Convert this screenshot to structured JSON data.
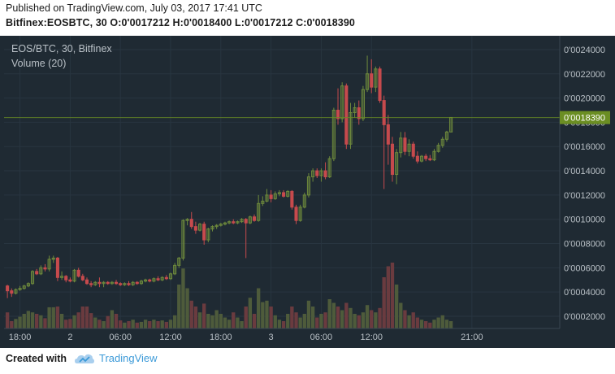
{
  "header": {
    "published": "Published on TradingView.com, July 03, 2017 17:41 UTC",
    "ohlc": "Bitfinex:EOSBTC, 30  O:0'0017212 H:0'0018400 L:0'0017212 C:0'0018390"
  },
  "footer": {
    "created_with": "Created with",
    "brand": "TradingView"
  },
  "colors": {
    "background": "#1f2a33",
    "grid": "#283540",
    "up": "#6e8a3c",
    "down": "#c64a4d",
    "vol_up": "#4e5b3b",
    "vol_down": "#6a3b3f",
    "price_tag": "#6b8e23",
    "axis_text": "#b9c0c6"
  },
  "chart_data": {
    "type": "candlestick",
    "title": "EOS/BTC, 30, Bitfinex",
    "volume_label": "Volume (20)",
    "last_price_label": "0'0018390",
    "last_price": 0.001839,
    "ylim": [
      0.0002,
      0.00246
    ],
    "x_range_bars": [
      -0.8,
      132
    ],
    "grid": true,
    "y_ticks": [
      {
        "v": 0.0024,
        "label": "0'0024000"
      },
      {
        "v": 0.0022,
        "label": "0'0022000"
      },
      {
        "v": 0.002,
        "label": "0'0020000"
      },
      {
        "v": 0.0018,
        "label": "0'0018000"
      },
      {
        "v": 0.0016,
        "label": "0'0016000"
      },
      {
        "v": 0.0014,
        "label": "0'0014000"
      },
      {
        "v": 0.0012,
        "label": "0'0012000"
      },
      {
        "v": 0.001,
        "label": "0'0010000"
      },
      {
        "v": 0.0008,
        "label": "0'0008000"
      },
      {
        "v": 0.0006,
        "label": "0'0006000"
      },
      {
        "v": 0.0004,
        "label": "0'0004000"
      },
      {
        "v": 0.0002,
        "label": "0'0002000"
      }
    ],
    "x_ticks": [
      {
        "bar": 3,
        "label": "18:00"
      },
      {
        "bar": 15,
        "label": "2"
      },
      {
        "bar": 27,
        "label": "06:00"
      },
      {
        "bar": 39,
        "label": "12:00"
      },
      {
        "bar": 51,
        "label": "18:00"
      },
      {
        "bar": 63,
        "label": "3"
      },
      {
        "bar": 75,
        "label": "06:00"
      },
      {
        "bar": 87,
        "label": "12:00"
      },
      {
        "bar": 111,
        "label": "21:00"
      }
    ],
    "candles": [
      {
        "o": 0.00045,
        "h": 0.00046,
        "l": 0.00035,
        "c": 0.00041,
        "v": 0.22
      },
      {
        "o": 0.00041,
        "h": 0.00043,
        "l": 0.00036,
        "c": 0.00039,
        "v": 0.1
      },
      {
        "o": 0.00039,
        "h": 0.00043,
        "l": 0.00038,
        "c": 0.00042,
        "v": 0.13
      },
      {
        "o": 0.00042,
        "h": 0.00045,
        "l": 0.00041,
        "c": 0.00043,
        "v": 0.16
      },
      {
        "o": 0.00043,
        "h": 0.00046,
        "l": 0.00042,
        "c": 0.00045,
        "v": 0.2
      },
      {
        "o": 0.00045,
        "h": 0.00048,
        "l": 0.00044,
        "c": 0.00047,
        "v": 0.24
      },
      {
        "o": 0.00047,
        "h": 0.00058,
        "l": 0.00046,
        "c": 0.00057,
        "v": 0.22
      },
      {
        "o": 0.00057,
        "h": 0.00059,
        "l": 0.00054,
        "c": 0.00055,
        "v": 0.2
      },
      {
        "o": 0.00055,
        "h": 0.00062,
        "l": 0.00054,
        "c": 0.0006,
        "v": 0.18
      },
      {
        "o": 0.0006,
        "h": 0.00063,
        "l": 0.00057,
        "c": 0.00059,
        "v": 0.14
      },
      {
        "o": 0.00059,
        "h": 0.0007,
        "l": 0.00057,
        "c": 0.00067,
        "v": 0.29
      },
      {
        "o": 0.00067,
        "h": 0.0007,
        "l": 0.00064,
        "c": 0.00068,
        "v": 0.29
      },
      {
        "o": 0.00068,
        "h": 0.00069,
        "l": 0.00049,
        "c": 0.00052,
        "v": 0.3
      },
      {
        "o": 0.00052,
        "h": 0.00057,
        "l": 0.0005,
        "c": 0.00053,
        "v": 0.2
      },
      {
        "o": 0.00053,
        "h": 0.00054,
        "l": 0.00048,
        "c": 0.0005,
        "v": 0.12
      },
      {
        "o": 0.0005,
        "h": 0.00052,
        "l": 0.00048,
        "c": 0.00049,
        "v": 0.13
      },
      {
        "o": 0.00049,
        "h": 0.00059,
        "l": 0.00048,
        "c": 0.00058,
        "v": 0.18
      },
      {
        "o": 0.00058,
        "h": 0.0006,
        "l": 0.00052,
        "c": 0.00053,
        "v": 0.22
      },
      {
        "o": 0.00053,
        "h": 0.00055,
        "l": 0.00049,
        "c": 0.0005,
        "v": 0.3
      },
      {
        "o": 0.0005,
        "h": 0.00052,
        "l": 0.00046,
        "c": 0.00047,
        "v": 0.3
      },
      {
        "o": 0.00047,
        "h": 0.00049,
        "l": 0.00044,
        "c": 0.00046,
        "v": 0.21
      },
      {
        "o": 0.00046,
        "h": 0.00049,
        "l": 0.00045,
        "c": 0.00048,
        "v": 0.15
      },
      {
        "o": 0.00048,
        "h": 0.00052,
        "l": 0.00044,
        "c": 0.00047,
        "v": 0.12
      },
      {
        "o": 0.00047,
        "h": 0.00049,
        "l": 0.00044,
        "c": 0.00048,
        "v": 0.1
      },
      {
        "o": 0.00048,
        "h": 0.00049,
        "l": 0.00046,
        "c": 0.00047,
        "v": 0.17
      },
      {
        "o": 0.00047,
        "h": 0.00049,
        "l": 0.00046,
        "c": 0.00048,
        "v": 0.25
      },
      {
        "o": 0.00048,
        "h": 0.0005,
        "l": 0.00046,
        "c": 0.00047,
        "v": 0.2
      },
      {
        "o": 0.00047,
        "h": 0.00048,
        "l": 0.00045,
        "c": 0.00046,
        "v": 0.11
      },
      {
        "o": 0.00046,
        "h": 0.00048,
        "l": 0.00045,
        "c": 0.00047,
        "v": 0.08
      },
      {
        "o": 0.00047,
        "h": 0.00049,
        "l": 0.00045,
        "c": 0.00046,
        "v": 0.1
      },
      {
        "o": 0.00046,
        "h": 0.00049,
        "l": 0.00045,
        "c": 0.00048,
        "v": 0.12
      },
      {
        "o": 0.00048,
        "h": 0.00049,
        "l": 0.00046,
        "c": 0.00047,
        "v": 0.08
      },
      {
        "o": 0.00047,
        "h": 0.0005,
        "l": 0.00046,
        "c": 0.00049,
        "v": 0.09
      },
      {
        "o": 0.00049,
        "h": 0.00051,
        "l": 0.00048,
        "c": 0.0005,
        "v": 0.12
      },
      {
        "o": 0.0005,
        "h": 0.00051,
        "l": 0.00048,
        "c": 0.00049,
        "v": 0.1
      },
      {
        "o": 0.00049,
        "h": 0.00052,
        "l": 0.00048,
        "c": 0.00051,
        "v": 0.12
      },
      {
        "o": 0.00051,
        "h": 0.00053,
        "l": 0.00049,
        "c": 0.0005,
        "v": 0.1
      },
      {
        "o": 0.0005,
        "h": 0.00053,
        "l": 0.00049,
        "c": 0.00052,
        "v": 0.11
      },
      {
        "o": 0.00052,
        "h": 0.00054,
        "l": 0.0005,
        "c": 0.00051,
        "v": 0.09
      },
      {
        "o": 0.00051,
        "h": 0.00056,
        "l": 0.0005,
        "c": 0.00055,
        "v": 0.12
      },
      {
        "o": 0.00055,
        "h": 0.00064,
        "l": 0.00054,
        "c": 0.00062,
        "v": 0.18
      },
      {
        "o": 0.00062,
        "h": 0.00069,
        "l": 0.0006,
        "c": 0.00068,
        "v": 0.6
      },
      {
        "o": 0.00068,
        "h": 0.001,
        "l": 0.00066,
        "c": 0.00099,
        "v": 0.82
      },
      {
        "o": 0.00099,
        "h": 0.00101,
        "l": 0.00095,
        "c": 0.001,
        "v": 0.55
      },
      {
        "o": 0.001,
        "h": 0.00106,
        "l": 0.00092,
        "c": 0.00094,
        "v": 0.38
      },
      {
        "o": 0.00094,
        "h": 0.00098,
        "l": 0.00088,
        "c": 0.00091,
        "v": 0.3
      },
      {
        "o": 0.00091,
        "h": 0.00097,
        "l": 0.0009,
        "c": 0.00096,
        "v": 0.22
      },
      {
        "o": 0.00096,
        "h": 0.00098,
        "l": 0.00079,
        "c": 0.00083,
        "v": 0.34
      },
      {
        "o": 0.00083,
        "h": 0.00093,
        "l": 0.00081,
        "c": 0.00092,
        "v": 0.2
      },
      {
        "o": 0.00092,
        "h": 0.00095,
        "l": 0.0009,
        "c": 0.00094,
        "v": 0.18
      },
      {
        "o": 0.00094,
        "h": 0.00096,
        "l": 0.00092,
        "c": 0.00095,
        "v": 0.25
      },
      {
        "o": 0.00095,
        "h": 0.00097,
        "l": 0.00094,
        "c": 0.00096,
        "v": 0.2
      },
      {
        "o": 0.00096,
        "h": 0.00098,
        "l": 0.00095,
        "c": 0.00097,
        "v": 0.15
      },
      {
        "o": 0.00097,
        "h": 0.00099,
        "l": 0.00096,
        "c": 0.00098,
        "v": 0.12
      },
      {
        "o": 0.00098,
        "h": 0.001,
        "l": 0.00096,
        "c": 0.00097,
        "v": 0.22
      },
      {
        "o": 0.00097,
        "h": 0.00099,
        "l": 0.00096,
        "c": 0.00098,
        "v": 0.15
      },
      {
        "o": 0.00098,
        "h": 0.00101,
        "l": 0.00097,
        "c": 0.001,
        "v": 0.1
      },
      {
        "o": 0.001,
        "h": 0.00101,
        "l": 0.00068,
        "c": 0.00097,
        "v": 0.3
      },
      {
        "o": 0.00097,
        "h": 0.00103,
        "l": 0.00096,
        "c": 0.00102,
        "v": 0.42
      },
      {
        "o": 0.00102,
        "h": 0.00104,
        "l": 0.00098,
        "c": 0.00099,
        "v": 0.2
      },
      {
        "o": 0.00099,
        "h": 0.0012,
        "l": 0.00098,
        "c": 0.00113,
        "v": 0.55
      },
      {
        "o": 0.00113,
        "h": 0.00119,
        "l": 0.00111,
        "c": 0.00115,
        "v": 0.36
      },
      {
        "o": 0.00115,
        "h": 0.00125,
        "l": 0.00114,
        "c": 0.0012,
        "v": 0.38
      },
      {
        "o": 0.0012,
        "h": 0.00124,
        "l": 0.00114,
        "c": 0.00117,
        "v": 0.3
      },
      {
        "o": 0.00117,
        "h": 0.00123,
        "l": 0.00116,
        "c": 0.00121,
        "v": 0.18
      },
      {
        "o": 0.00121,
        "h": 0.00124,
        "l": 0.00119,
        "c": 0.00122,
        "v": 0.12
      },
      {
        "o": 0.00122,
        "h": 0.00124,
        "l": 0.00118,
        "c": 0.00119,
        "v": 0.1
      },
      {
        "o": 0.00119,
        "h": 0.00124,
        "l": 0.00118,
        "c": 0.00123,
        "v": 0.2
      },
      {
        "o": 0.00123,
        "h": 0.00124,
        "l": 0.00108,
        "c": 0.0011,
        "v": 0.3
      },
      {
        "o": 0.0011,
        "h": 0.00112,
        "l": 0.00096,
        "c": 0.00099,
        "v": 0.22
      },
      {
        "o": 0.00099,
        "h": 0.00112,
        "l": 0.00098,
        "c": 0.0011,
        "v": 0.15
      },
      {
        "o": 0.0011,
        "h": 0.00122,
        "l": 0.00109,
        "c": 0.0012,
        "v": 0.2
      },
      {
        "o": 0.0012,
        "h": 0.00138,
        "l": 0.00118,
        "c": 0.00135,
        "v": 0.38
      },
      {
        "o": 0.00135,
        "h": 0.00142,
        "l": 0.00131,
        "c": 0.0014,
        "v": 0.3
      },
      {
        "o": 0.0014,
        "h": 0.00142,
        "l": 0.00134,
        "c": 0.00136,
        "v": 0.15
      },
      {
        "o": 0.00136,
        "h": 0.00142,
        "l": 0.00131,
        "c": 0.0014,
        "v": 0.2
      },
      {
        "o": 0.0014,
        "h": 0.00147,
        "l": 0.00133,
        "c": 0.00135,
        "v": 0.22
      },
      {
        "o": 0.00135,
        "h": 0.00152,
        "l": 0.00134,
        "c": 0.0015,
        "v": 0.4
      },
      {
        "o": 0.0015,
        "h": 0.00192,
        "l": 0.00148,
        "c": 0.0019,
        "v": 0.35
      },
      {
        "o": 0.0019,
        "h": 0.00208,
        "l": 0.00178,
        "c": 0.00183,
        "v": 0.3
      },
      {
        "o": 0.00183,
        "h": 0.00213,
        "l": 0.0018,
        "c": 0.0021,
        "v": 0.25
      },
      {
        "o": 0.0021,
        "h": 0.00212,
        "l": 0.00158,
        "c": 0.00162,
        "v": 0.35
      },
      {
        "o": 0.00162,
        "h": 0.00196,
        "l": 0.00158,
        "c": 0.00188,
        "v": 0.28
      },
      {
        "o": 0.00188,
        "h": 0.00196,
        "l": 0.00184,
        "c": 0.00192,
        "v": 0.2
      },
      {
        "o": 0.00192,
        "h": 0.00198,
        "l": 0.00178,
        "c": 0.00183,
        "v": 0.18
      },
      {
        "o": 0.00183,
        "h": 0.0021,
        "l": 0.00181,
        "c": 0.00207,
        "v": 0.22
      },
      {
        "o": 0.00207,
        "h": 0.00235,
        "l": 0.00205,
        "c": 0.0022,
        "v": 0.32
      },
      {
        "o": 0.0022,
        "h": 0.00232,
        "l": 0.00204,
        "c": 0.00209,
        "v": 0.25
      },
      {
        "o": 0.00209,
        "h": 0.00226,
        "l": 0.00205,
        "c": 0.00224,
        "v": 0.22
      },
      {
        "o": 0.00224,
        "h": 0.00226,
        "l": 0.00196,
        "c": 0.00198,
        "v": 0.28
      },
      {
        "o": 0.00198,
        "h": 0.00202,
        "l": 0.00125,
        "c": 0.00178,
        "v": 0.7
      },
      {
        "o": 0.00178,
        "h": 0.00186,
        "l": 0.00145,
        "c": 0.00162,
        "v": 0.85
      },
      {
        "o": 0.00162,
        "h": 0.00168,
        "l": 0.00131,
        "c": 0.00137,
        "v": 0.9
      },
      {
        "o": 0.00137,
        "h": 0.00158,
        "l": 0.00129,
        "c": 0.00155,
        "v": 0.6
      },
      {
        "o": 0.00155,
        "h": 0.00172,
        "l": 0.00151,
        "c": 0.00167,
        "v": 0.35
      },
      {
        "o": 0.00167,
        "h": 0.00172,
        "l": 0.00153,
        "c": 0.00156,
        "v": 0.25
      },
      {
        "o": 0.00156,
        "h": 0.00166,
        "l": 0.00152,
        "c": 0.00162,
        "v": 0.18
      },
      {
        "o": 0.00162,
        "h": 0.00164,
        "l": 0.0015,
        "c": 0.00152,
        "v": 0.22
      },
      {
        "o": 0.00152,
        "h": 0.00156,
        "l": 0.00146,
        "c": 0.00148,
        "v": 0.15
      },
      {
        "o": 0.00148,
        "h": 0.00153,
        "l": 0.00147,
        "c": 0.00152,
        "v": 0.12
      },
      {
        "o": 0.00152,
        "h": 0.00154,
        "l": 0.00148,
        "c": 0.0015,
        "v": 0.1
      },
      {
        "o": 0.0015,
        "h": 0.00153,
        "l": 0.00148,
        "c": 0.00149,
        "v": 0.08
      },
      {
        "o": 0.00149,
        "h": 0.00158,
        "l": 0.00148,
        "c": 0.00156,
        "v": 0.12
      },
      {
        "o": 0.00156,
        "h": 0.00163,
        "l": 0.00155,
        "c": 0.00161,
        "v": 0.15
      },
      {
        "o": 0.00161,
        "h": 0.00168,
        "l": 0.00159,
        "c": 0.00166,
        "v": 0.18
      },
      {
        "o": 0.00166,
        "h": 0.00173,
        "l": 0.00164,
        "c": 0.00172,
        "v": 0.12
      },
      {
        "o": 0.00172,
        "h": 0.00184,
        "l": 0.00172,
        "c": 0.00184,
        "v": 0.1
      }
    ]
  }
}
